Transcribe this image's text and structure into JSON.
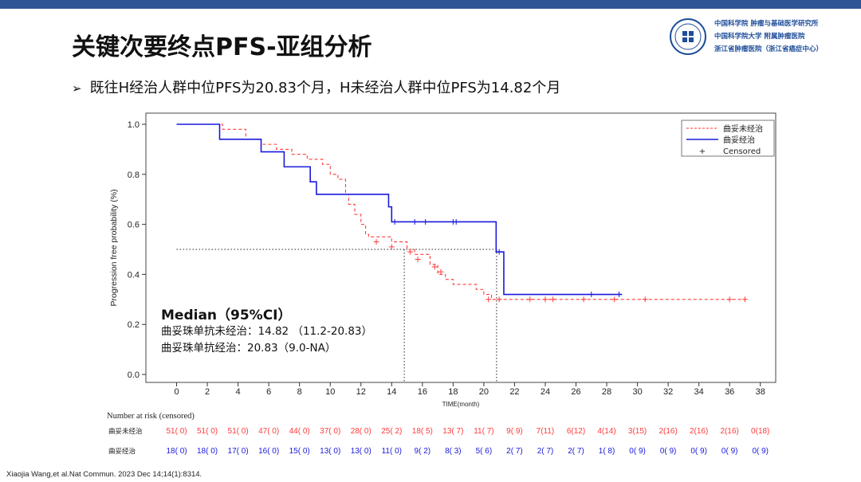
{
  "slide": {
    "title": "关键次要终点PFS-亚组分析",
    "subtitle": "既往H经治人群中位PFS为20.83个月，H未经治人群中位PFS为14.82个月",
    "citation": "Xiaojia Wang,et al.Nat Commun. 2023 Dec 14;14(1):8314."
  },
  "logo": {
    "line1": "中国科学院 肿瘤与基础医学研究所",
    "line2": "中国科学院大学 附属肿瘤医院",
    "line3": "浙江省肿瘤医院（浙江省癌症中心）"
  },
  "colors": {
    "untreated": "#ff3b3b",
    "treated": "#1a1adc",
    "bar": "#2f5597"
  },
  "chart_data": {
    "type": "line",
    "subtype": "kaplan-meier",
    "xlabel": "TIME(month)",
    "ylabel": "Progression free probability (%)",
    "xlim": [
      -2,
      39
    ],
    "ylim": [
      0,
      1.0
    ],
    "xticks": [
      0,
      2,
      4,
      6,
      8,
      10,
      12,
      14,
      16,
      18,
      20,
      22,
      24,
      26,
      28,
      30,
      32,
      34,
      36,
      38
    ],
    "yticks": [
      0.0,
      0.2,
      0.4,
      0.6,
      0.8,
      1.0
    ],
    "legend": [
      {
        "label": "曲妥未经治",
        "style": "dashed",
        "color": "#ff3b3b"
      },
      {
        "label": "曲妥经治",
        "style": "solid",
        "color": "#1a1adc"
      },
      {
        "label": "Censored",
        "style": "marker",
        "marker": "+"
      }
    ],
    "series": [
      {
        "name": "曲妥未经治",
        "color": "#ff3b3b",
        "style": "dashed",
        "steps": [
          [
            0,
            1.0
          ],
          [
            3,
            0.98
          ],
          [
            4.5,
            0.94
          ],
          [
            5.5,
            0.92
          ],
          [
            6.5,
            0.9
          ],
          [
            7.5,
            0.88
          ],
          [
            8.5,
            0.86
          ],
          [
            9.5,
            0.84
          ],
          [
            10,
            0.8
          ],
          [
            10.5,
            0.78
          ],
          [
            11,
            0.72
          ],
          [
            11.2,
            0.68
          ],
          [
            11.6,
            0.64
          ],
          [
            12,
            0.6
          ],
          [
            12.3,
            0.56
          ],
          [
            12.5,
            0.55
          ],
          [
            14,
            0.53
          ],
          [
            15,
            0.5
          ],
          [
            15.5,
            0.48
          ],
          [
            16.5,
            0.44
          ],
          [
            17,
            0.4
          ],
          [
            17.5,
            0.38
          ],
          [
            18,
            0.36
          ],
          [
            19.5,
            0.34
          ],
          [
            20,
            0.32
          ],
          [
            20.5,
            0.3
          ],
          [
            37,
            0.3
          ]
        ],
        "censored": [
          [
            13,
            0.53
          ],
          [
            14,
            0.51
          ],
          [
            15.2,
            0.49
          ],
          [
            15.7,
            0.46
          ],
          [
            16.8,
            0.43
          ],
          [
            17.2,
            0.41
          ],
          [
            20.3,
            0.3
          ],
          [
            21,
            0.3
          ],
          [
            23,
            0.3
          ],
          [
            24,
            0.3
          ],
          [
            24.5,
            0.3
          ],
          [
            26.5,
            0.3
          ],
          [
            28.5,
            0.3
          ],
          [
            30.5,
            0.3
          ],
          [
            36,
            0.3
          ],
          [
            37,
            0.3
          ]
        ]
      },
      {
        "name": "曲妥经治",
        "color": "#1a1adc",
        "style": "solid",
        "steps": [
          [
            0,
            1.0
          ],
          [
            2.8,
            0.94
          ],
          [
            5.5,
            0.89
          ],
          [
            7,
            0.83
          ],
          [
            8.7,
            0.77
          ],
          [
            9.1,
            0.72
          ],
          [
            13.8,
            0.67
          ],
          [
            14,
            0.61
          ],
          [
            20.8,
            0.49
          ],
          [
            21.3,
            0.32
          ],
          [
            29,
            0.32
          ]
        ],
        "censored": [
          [
            14.2,
            0.61
          ],
          [
            15.5,
            0.61
          ],
          [
            16.2,
            0.61
          ],
          [
            18,
            0.61
          ],
          [
            18.2,
            0.61
          ],
          [
            21,
            0.49
          ],
          [
            27,
            0.32
          ],
          [
            28.8,
            0.32
          ]
        ]
      }
    ],
    "median_line": {
      "y": 0.5,
      "x_untreated": 14.82,
      "x_treated": 20.83
    },
    "annotation": {
      "heading": "Median（95%CI）",
      "line1": "曲妥珠单抗未经治：14.82 （11.2-20.83）",
      "line2": "曲妥珠单抗经治：20.83（9.0-NA）"
    },
    "risk_table": {
      "title": "Number at risk (censored)",
      "rows": [
        {
          "label": "曲妥未经治",
          "color": "#ff3b3b",
          "values": [
            "51( 0)",
            "51( 0)",
            "51( 0)",
            "47( 0)",
            "44( 0)",
            "37( 0)",
            "28( 0)",
            "25( 2)",
            "18( 5)",
            "13( 7)",
            "11( 7)",
            "9( 9)",
            "7(11)",
            "6(12)",
            "4(14)",
            "3(15)",
            "2(16)",
            "2(16)",
            "2(16)",
            "0(18)"
          ]
        },
        {
          "label": "曲妥经治",
          "color": "#1a1adc",
          "values": [
            "18( 0)",
            "18( 0)",
            "17( 0)",
            "16( 0)",
            "15( 0)",
            "13( 0)",
            "13( 0)",
            "11( 0)",
            "9( 2)",
            "8( 3)",
            "5( 6)",
            "2( 7)",
            "2( 7)",
            "2( 7)",
            "1( 8)",
            "0( 9)",
            "0( 9)",
            "0( 9)",
            "0( 9)",
            "0( 9)"
          ]
        }
      ]
    }
  }
}
